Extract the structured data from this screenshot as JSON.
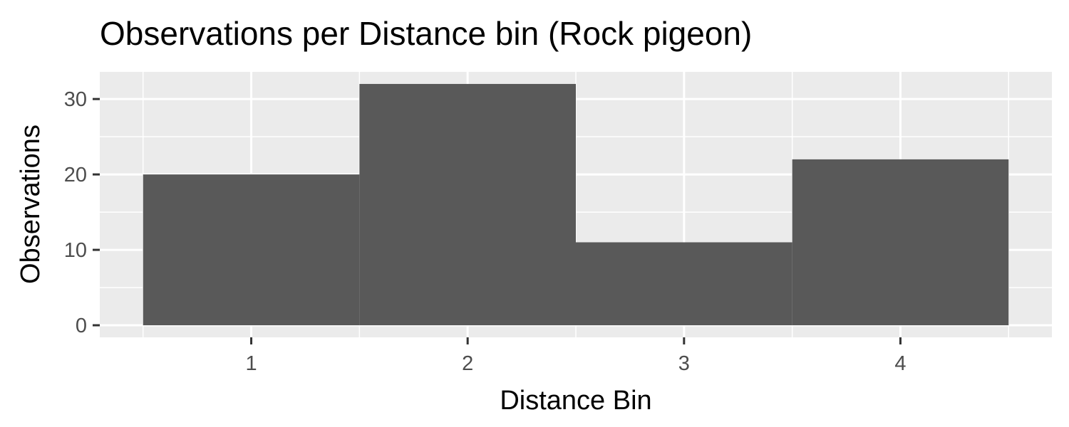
{
  "chart_data": {
    "type": "bar",
    "title": "Observations per Distance bin (Rock pigeon)",
    "xlabel": "Distance Bin",
    "ylabel": "Observations",
    "categories": [
      "1",
      "2",
      "3",
      "4"
    ],
    "values": [
      20,
      32,
      11,
      22
    ],
    "xlim": [
      0.3,
      4.7
    ],
    "ylim": [
      -1.6,
      33.6
    ],
    "yticks": [
      0,
      10,
      20,
      30
    ],
    "bar_width": 1.0,
    "grid": true,
    "legend": "none",
    "colors": {
      "panel_background": "#ebebeb",
      "grid": "#ffffff",
      "bar_fill": "#595959",
      "tick_text": "#4d4d4d",
      "tick_mark": "#333333"
    }
  }
}
